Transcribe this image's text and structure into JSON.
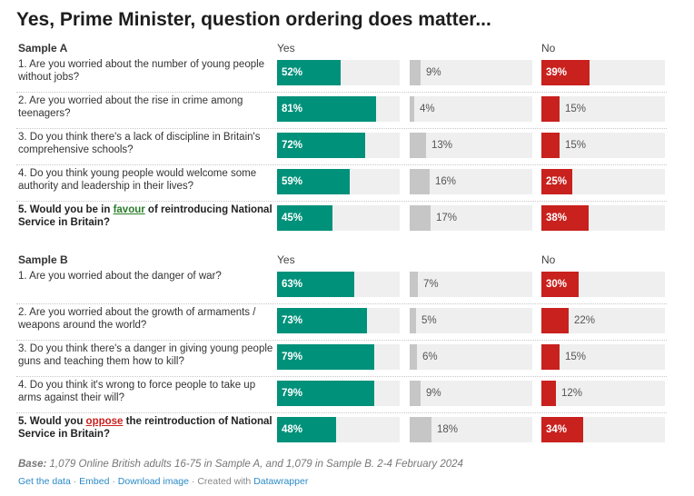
{
  "title": "Yes, Prime Minister, question ordering does matter...",
  "colors": {
    "yes": "#00917a",
    "neutral": "#c6c6c6",
    "no": "#c8211e",
    "track": "#efefef"
  },
  "chart_data": {
    "type": "bar",
    "title": "Yes, Prime Minister, question ordering does matter...",
    "columns": [
      "Yes",
      "",
      "No"
    ],
    "xlim": [
      0,
      100
    ],
    "unit": "%",
    "samples": [
      {
        "label": "Sample A",
        "yes_label": "Yes",
        "no_label": "No",
        "rows": [
          {
            "question": "1. Are you worried about the number of young people without jobs?",
            "bold": false,
            "yes": 52,
            "neutral": 9,
            "no": 39
          },
          {
            "question": "2. Are you worried about the rise in crime among teenagers?",
            "bold": false,
            "yes": 81,
            "neutral": 4,
            "no": 15
          },
          {
            "question": "3. Do you think there's a lack of discipline in Britain's comprehensive schools?",
            "bold": false,
            "yes": 72,
            "neutral": 13,
            "no": 15
          },
          {
            "question": "4. Do you think young people would welcome some authority and leadership in their lives?",
            "bold": false,
            "yes": 59,
            "neutral": 16,
            "no": 25
          },
          {
            "question": "5. Would you be in favour of reintroducing National Service in Britain?",
            "bold": true,
            "highlight": "favour",
            "highlight_color": "green",
            "yes": 45,
            "neutral": 17,
            "no": 38
          }
        ]
      },
      {
        "label": "Sample B",
        "yes_label": "Yes",
        "no_label": "No",
        "rows": [
          {
            "question": "1. Are you worried about the danger of war?",
            "bold": false,
            "yes": 63,
            "neutral": 7,
            "no": 30
          },
          {
            "question": "2. Are you worried about the growth of armaments / weapons around the world?",
            "bold": false,
            "yes": 73,
            "neutral": 5,
            "no": 22
          },
          {
            "question": "3. Do you think there's a danger in giving young people guns and teaching them how to kill?",
            "bold": false,
            "yes": 79,
            "neutral": 6,
            "no": 15
          },
          {
            "question": "4. Do you think it's wrong to force people to take up arms against their will?",
            "bold": false,
            "yes": 79,
            "neutral": 9,
            "no": 12
          },
          {
            "question": "5. Would you oppose the reintroduction of National Service in Britain?",
            "bold": true,
            "highlight": "oppose",
            "highlight_color": "red",
            "yes": 48,
            "neutral": 18,
            "no": 34
          }
        ]
      }
    ]
  },
  "footer": {
    "base_label": "Base:",
    "base_text": "1,079 Online British adults 16-75 in Sample A, and 1,079 in Sample B. 2-4 February 2024",
    "links": [
      {
        "label": "Get the data",
        "link": true
      },
      {
        "label": "Embed",
        "link": true
      },
      {
        "label": "Download image",
        "link": true
      },
      {
        "label": "Created with",
        "link": false
      },
      {
        "label": "Datawrapper",
        "link": true
      }
    ]
  }
}
